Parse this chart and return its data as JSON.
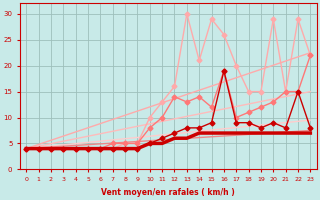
{
  "xlabel": "Vent moyen/en rafales ( km/h )",
  "xlim": [
    -0.5,
    23.5
  ],
  "ylim": [
    0,
    32
  ],
  "xticks": [
    0,
    1,
    2,
    3,
    4,
    5,
    6,
    7,
    8,
    9,
    10,
    11,
    12,
    13,
    14,
    15,
    16,
    17,
    18,
    19,
    20,
    21,
    22,
    23
  ],
  "yticks": [
    0,
    5,
    10,
    15,
    20,
    25,
    30
  ],
  "background_color": "#c8eae8",
  "grid_color": "#9dbfbb",
  "trend1": {
    "x": [
      0,
      23
    ],
    "y": [
      4.0,
      22.5
    ],
    "color": "#ffaaaa",
    "lw": 1.0
  },
  "trend2": {
    "x": [
      0,
      23
    ],
    "y": [
      4.0,
      15.0
    ],
    "color": "#ffbbbb",
    "lw": 1.0
  },
  "trend3": {
    "x": [
      0,
      23
    ],
    "y": [
      4.0,
      9.5
    ],
    "color": "#ffcccc",
    "lw": 1.0
  },
  "trend4": {
    "x": [
      0,
      23
    ],
    "y": [
      4.0,
      7.5
    ],
    "color": "#ee8888",
    "lw": 1.0
  },
  "jagged_light": {
    "x": [
      0,
      1,
      2,
      3,
      4,
      5,
      6,
      7,
      8,
      9,
      10,
      11,
      12,
      13,
      14,
      15,
      16,
      17,
      18,
      19,
      20,
      21,
      22,
      23
    ],
    "y": [
      4,
      4,
      4,
      4,
      4,
      4,
      4,
      4,
      5,
      5,
      10,
      13,
      16,
      30,
      21,
      29,
      26,
      20,
      15,
      15,
      29,
      15,
      29,
      22
    ],
    "color": "#ffaaaa",
    "lw": 1.0,
    "ms": 2.5
  },
  "jagged_med": {
    "x": [
      0,
      1,
      2,
      3,
      4,
      5,
      6,
      7,
      8,
      9,
      10,
      11,
      12,
      13,
      14,
      15,
      16,
      17,
      18,
      19,
      20,
      21,
      22,
      23
    ],
    "y": [
      4,
      4,
      4,
      4,
      4,
      4,
      4,
      5,
      5,
      5,
      8,
      10,
      14,
      13,
      14,
      12,
      19,
      10,
      11,
      12,
      13,
      15,
      15,
      22
    ],
    "color": "#ff7777",
    "lw": 1.0,
    "ms": 2.5
  },
  "jagged_dark": {
    "x": [
      0,
      1,
      2,
      3,
      4,
      5,
      6,
      7,
      8,
      9,
      10,
      11,
      12,
      13,
      14,
      15,
      16,
      17,
      18,
      19,
      20,
      21,
      22,
      23
    ],
    "y": [
      4,
      4,
      4,
      4,
      4,
      4,
      4,
      4,
      4,
      4,
      5,
      6,
      7,
      8,
      8,
      9,
      19,
      9,
      9,
      8,
      9,
      8,
      15,
      8
    ],
    "color": "#cc0000",
    "lw": 1.0,
    "ms": 2.5
  },
  "thick_flat": {
    "x": [
      0,
      1,
      2,
      3,
      4,
      5,
      6,
      7,
      8,
      9,
      10,
      11,
      12,
      13,
      14,
      15,
      16,
      17,
      18,
      19,
      20,
      21,
      22,
      23
    ],
    "y": [
      4,
      4,
      4,
      4,
      4,
      4,
      4,
      4,
      4,
      4,
      5,
      5,
      6,
      6,
      7,
      7,
      7,
      7,
      7,
      7,
      7,
      7,
      7,
      7
    ],
    "color": "#cc0000",
    "lw": 2.5
  }
}
